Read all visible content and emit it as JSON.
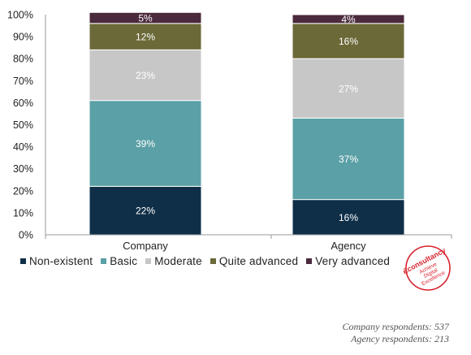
{
  "chart_data": {
    "type": "bar",
    "stacked": true,
    "categories": [
      "Company",
      "Agency"
    ],
    "series": [
      {
        "name": "Non-existent",
        "color": "#0f2f48",
        "values": [
          22,
          16
        ]
      },
      {
        "name": "Basic",
        "color": "#5aa0a6",
        "values": [
          39,
          37
        ]
      },
      {
        "name": "Moderate",
        "color": "#c7c7c7",
        "values": [
          23,
          27
        ]
      },
      {
        "name": "Quite advanced",
        "color": "#6b6938",
        "values": [
          12,
          16
        ]
      },
      {
        "name": "Very advanced",
        "color": "#4a2a3c",
        "values": [
          5,
          4
        ]
      }
    ],
    "value_labels": [
      [
        "22%",
        "16%"
      ],
      [
        "39%",
        "37%"
      ],
      [
        "23%",
        "27%"
      ],
      [
        "12%",
        "16%"
      ],
      [
        "5%",
        "4%"
      ]
    ],
    "ylim": [
      0,
      100
    ],
    "yticks": [
      "0%",
      "10%",
      "20%",
      "30%",
      "40%",
      "50%",
      "60%",
      "70%",
      "80%",
      "90%",
      "100%"
    ],
    "legend_position": "bottom",
    "grid": false
  },
  "footnote": {
    "line1": "Company respondents: 537",
    "line2": "Agency respondents: 213"
  },
  "logo": {
    "brand": "Econsultancy",
    "tagline": [
      "Achieve",
      "Digital",
      "Excellence"
    ],
    "tm": "TM",
    "color": "#d9232e"
  }
}
